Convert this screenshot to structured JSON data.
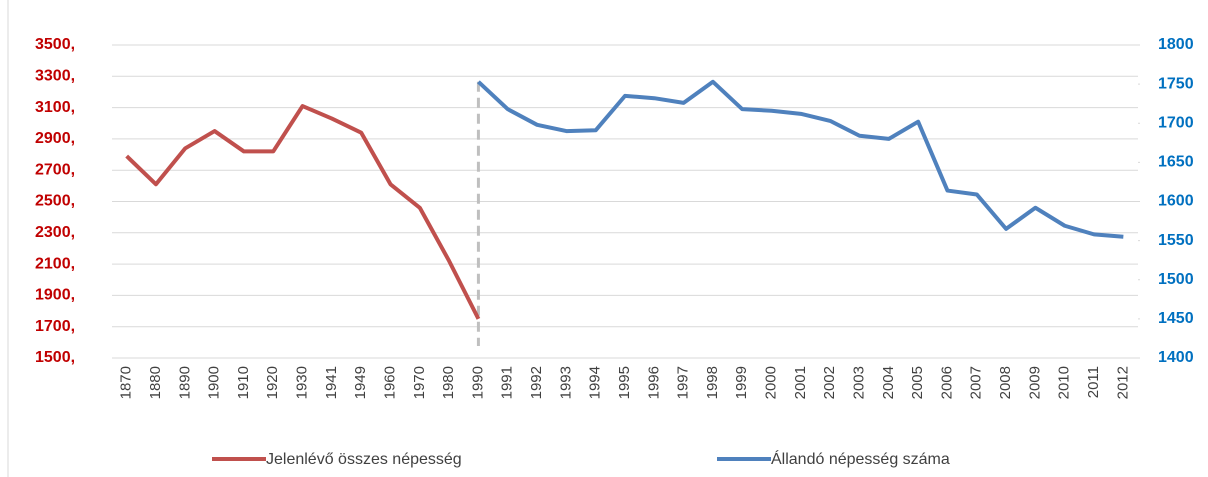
{
  "chart_data": {
    "type": "line",
    "categories": [
      "1870",
      "1880",
      "1890",
      "1900",
      "1910",
      "1920",
      "1930",
      "1941",
      "1949",
      "1960",
      "1970",
      "1980",
      "1990",
      "1991",
      "1992",
      "1993",
      "1994",
      "1995",
      "1996",
      "1997",
      "1998",
      "1999",
      "2000",
      "2001",
      "2002",
      "2003",
      "2004",
      "2005",
      "2006",
      "2007",
      "2008",
      "2009",
      "2010",
      "2011",
      "2012"
    ],
    "series": [
      {
        "name": "Jelenlévő összes népesség",
        "color": "#c0504d",
        "values": [
          2790,
          2610,
          2840,
          2950,
          2820,
          2820,
          3110,
          3030,
          2940,
          2610,
          2460,
          2120,
          1750,
          null,
          null,
          null,
          null,
          null,
          null,
          null,
          null,
          null,
          null,
          null,
          null,
          null,
          null,
          null,
          null,
          null,
          null,
          null,
          null,
          null,
          null
        ]
      },
      {
        "name": "Állandó népesség száma",
        "color": "#4f81bd",
        "axis": "y2",
        "values": [
          null,
          null,
          null,
          null,
          null,
          null,
          null,
          null,
          null,
          null,
          null,
          null,
          1753,
          1718,
          1698,
          1690,
          1691,
          1735,
          1732,
          1726,
          1753,
          1718,
          1716,
          1712,
          1703,
          1684,
          1680,
          1702,
          1614,
          1609,
          1565,
          1592,
          1569,
          1558,
          1555
        ]
      }
    ],
    "ylim": [
      1500,
      3500
    ],
    "yticks": [
      {
        "value": 1500,
        "label": "1500,"
      },
      {
        "value": 1700,
        "label": "1700,"
      },
      {
        "value": 1900,
        "label": "1900,"
      },
      {
        "value": 2100,
        "label": "2100,"
      },
      {
        "value": 2300,
        "label": "2300,"
      },
      {
        "value": 2500,
        "label": "2500,"
      },
      {
        "value": 2700,
        "label": "2700,"
      },
      {
        "value": 2900,
        "label": "2900,"
      },
      {
        "value": 3100,
        "label": "3100,"
      },
      {
        "value": 3300,
        "label": "3300,"
      },
      {
        "value": 3500,
        "label": "3500,"
      }
    ],
    "y2lim": [
      1400,
      1800
    ],
    "y2ticks": [
      1400,
      1450,
      1500,
      1550,
      1600,
      1650,
      1700,
      1750,
      1800
    ],
    "grid": true,
    "legend": "bottom"
  }
}
